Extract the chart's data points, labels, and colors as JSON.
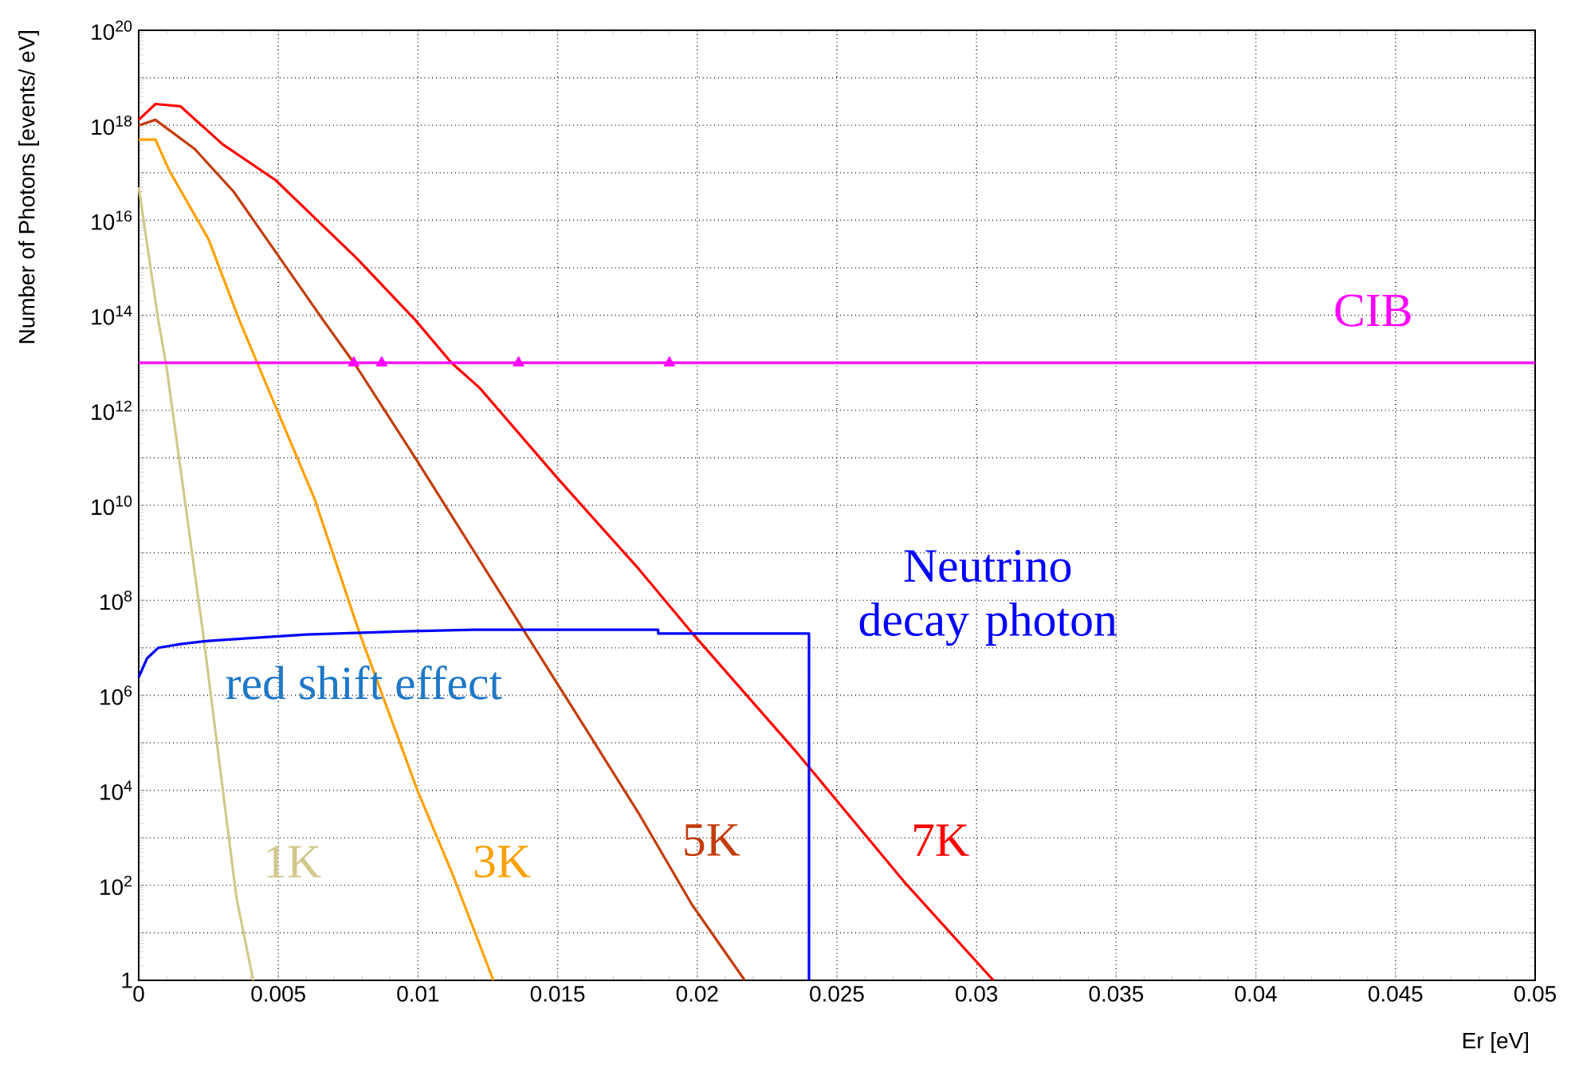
{
  "chart_data": {
    "type": "line",
    "xlabel": "Er [eV]",
    "ylabel": "Number of Photons [events/ eV]",
    "log": "y",
    "grid": true,
    "xlim": [
      0,
      0.05
    ],
    "ylim": [
      1,
      1e+20
    ],
    "xticks": [
      0,
      0.005,
      0.01,
      0.015,
      0.02,
      0.025,
      0.03,
      0.035,
      0.04,
      0.045,
      0.05
    ],
    "yticks": [
      {
        "value": 1,
        "label": "1"
      },
      {
        "value": 10.0,
        "label": null
      },
      {
        "value": 100.0,
        "label": "10$^{2}$"
      },
      {
        "value": 1000.0,
        "label": null
      },
      {
        "value": 10000.0,
        "label": "10$^{4}$"
      },
      {
        "value": 100000.0,
        "label": null
      },
      {
        "value": 1000000.0,
        "label": "10$^{6}$"
      },
      {
        "value": 10000000.0,
        "label": null
      },
      {
        "value": 100000000.0,
        "label": "10$^{8}$"
      },
      {
        "value": 1000000000.0,
        "label": null
      },
      {
        "value": 10000000000.0,
        "label": "10$^{10}$"
      },
      {
        "value": 100000000000.0,
        "label": null
      },
      {
        "value": 1000000000000.0,
        "label": "10$^{12}$"
      },
      {
        "value": 10000000000000.0,
        "label": null
      },
      {
        "value": 100000000000000.0,
        "label": "10$^{14}$"
      },
      {
        "value": 1000000000000000.0,
        "label": null
      },
      {
        "value": 1e+16,
        "label": "10$^{16}$"
      },
      {
        "value": 1e+17,
        "label": null
      },
      {
        "value": 1e+18,
        "label": "10$^{18}$"
      },
      {
        "value": 1e+19,
        "label": null
      },
      {
        "value": 1e+20,
        "label": "10$^{20}$"
      }
    ],
    "marker": "none",
    "series": [
      {
        "name": "1K",
        "color": "#d2c88a",
        "x": [
          0,
          0.0007,
          0.001,
          0.0023,
          0.0035,
          0.0041
        ],
        "values": [
          5e+16,
          80000000000000.0,
          8000000000000.0,
          21000000.0,
          55,
          1
        ]
      },
      {
        "name": "3K",
        "color": "#ffa000",
        "x": [
          0,
          0.0006,
          0.0011,
          0.0025,
          0.0036,
          0.0043,
          0.0063,
          0.0079,
          0.01,
          0.0112,
          0.0127
        ],
        "values": [
          5e+17,
          5e+17,
          1.1e+17,
          4000000000000000.0,
          80000000000000.0,
          8300000000000.0,
          13500000000.0,
          21000000.0,
          9300,
          195,
          1
        ]
      },
      {
        "name": "5K",
        "color": "#c43c0a",
        "x": [
          0,
          0.0006,
          0.002,
          0.0034,
          0.0047,
          0.0066,
          0.0078,
          0.0099,
          0.0137,
          0.0162,
          0.0179,
          0.0198,
          0.0217
        ],
        "values": [
          1e+18,
          1.3e+18,
          3.2e+17,
          4e+16,
          3200000000000000.0,
          80000000000000.0,
          8300000000000.0,
          100000000000.0,
          28000000.0,
          130000.0,
          3300,
          40,
          1
        ]
      },
      {
        "name": "7K",
        "color": "#ff0000",
        "x": [
          0,
          0.0006,
          0.0015,
          0.003,
          0.0049,
          0.0078,
          0.0099,
          0.0112,
          0.0122,
          0.015,
          0.0179,
          0.0198,
          0.0236,
          0.0274,
          0.0306
        ],
        "values": [
          1.3e+18,
          2.8e+18,
          2.5e+18,
          4e+17,
          7e+16,
          1600000000000000.0,
          80000000000000.0,
          10000000000000.0,
          3000000000000.0,
          37000000000.0,
          460000000.0,
          21000000.0,
          59000.0,
          120,
          1
        ]
      },
      {
        "name": "CIB",
        "color": "#ff00ff",
        "x": [
          0,
          0.05
        ],
        "values": [
          10000000000000.0,
          10000000000000.0
        ]
      },
      {
        "type": "scatter",
        "marker": "triangle",
        "color": "#ff00ff",
        "x": [
          0.0077,
          0.0087,
          0.0136,
          0.019
        ],
        "values": [
          10000000000000.0,
          10000000000000.0,
          10000000000000.0,
          10000000000000.0
        ]
      },
      {
        "name": "Neutrino decay photon",
        "color": "#0000ff",
        "x": [
          0,
          0.0003,
          0.0007,
          0.0015,
          0.0025,
          0.004,
          0.006,
          0.0093,
          0.012,
          0.0186,
          0.0186,
          0.024,
          0.024
        ],
        "values": [
          2400000.0,
          6000000.0,
          10000000.0,
          12000000.0,
          14000000.0,
          16000000.0,
          19000000.0,
          22000000.0,
          24000000.0,
          24000000.0,
          20000000.0,
          20000000.0,
          1
        ]
      }
    ],
    "annotations": [
      "red shift effect"
    ]
  }
}
